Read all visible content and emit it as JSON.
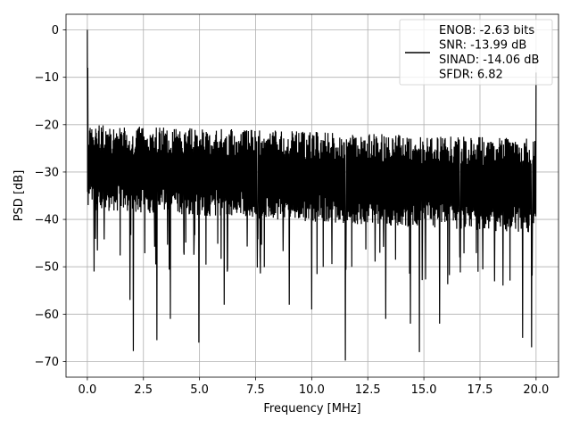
{
  "chart_data": {
    "type": "line",
    "title": "",
    "xlabel": "Frequency [MHz]",
    "ylabel": "PSD [dB]",
    "xlim": [
      -0.95,
      21.0
    ],
    "ylim": [
      -73.3,
      3.3
    ],
    "xticks": [
      0.0,
      2.5,
      5.0,
      7.5,
      10.0,
      12.5,
      15.0,
      17.5,
      20.0
    ],
    "xtick_labels": [
      "0.0",
      "2.5",
      "5.0",
      "7.5",
      "10.0",
      "12.5",
      "15.0",
      "17.5",
      "20.0"
    ],
    "yticks": [
      0,
      -10,
      -20,
      -30,
      -40,
      -50,
      -60,
      -70
    ],
    "ytick_labels": [
      "0",
      "−10",
      "−20",
      "−30",
      "−40",
      "−50",
      "−60",
      "−70"
    ],
    "grid": true,
    "legend_position": "top-right",
    "line_color": "#000000",
    "series": [
      {
        "name": "ENOB: -2.63 bits\nSNR: -13.99 dB\nSINAD: -14.06 dB\nSFDR: 6.82",
        "legend_lines": [
          "ENOB: -2.63 bits",
          "SNR: -13.99 dB",
          "SINAD: -14.06 dB",
          "SFDR: 6.82"
        ],
        "noise_band": {
          "x_range": [
            0.0,
            20.0
          ],
          "upper_start": -20,
          "upper_end": -23,
          "lower_start": -38,
          "lower_end": -43
        },
        "peaks": [
          {
            "x": 0.0,
            "y": 0.0
          },
          {
            "x": 0.02,
            "y": -8.0
          },
          {
            "x": 10.0,
            "y": -13.0
          },
          {
            "x": 20.0,
            "y": -9.0
          }
        ],
        "dips": [
          {
            "x": 0.3,
            "y": -51.0
          },
          {
            "x": 1.9,
            "y": -57.0
          },
          {
            "x": 2.05,
            "y": -67.8
          },
          {
            "x": 3.1,
            "y": -65.5
          },
          {
            "x": 3.7,
            "y": -61.0
          },
          {
            "x": 4.97,
            "y": -66.0
          },
          {
            "x": 6.1,
            "y": -58.0
          },
          {
            "x": 9.0,
            "y": -58.0
          },
          {
            "x": 10.0,
            "y": -59.0
          },
          {
            "x": 11.5,
            "y": -69.8
          },
          {
            "x": 13.3,
            "y": -61.0
          },
          {
            "x": 14.4,
            "y": -62.0
          },
          {
            "x": 14.8,
            "y": -68.0
          },
          {
            "x": 15.7,
            "y": -62.0
          },
          {
            "x": 19.4,
            "y": -65.0
          },
          {
            "x": 19.8,
            "y": -67.0
          }
        ]
      }
    ]
  }
}
